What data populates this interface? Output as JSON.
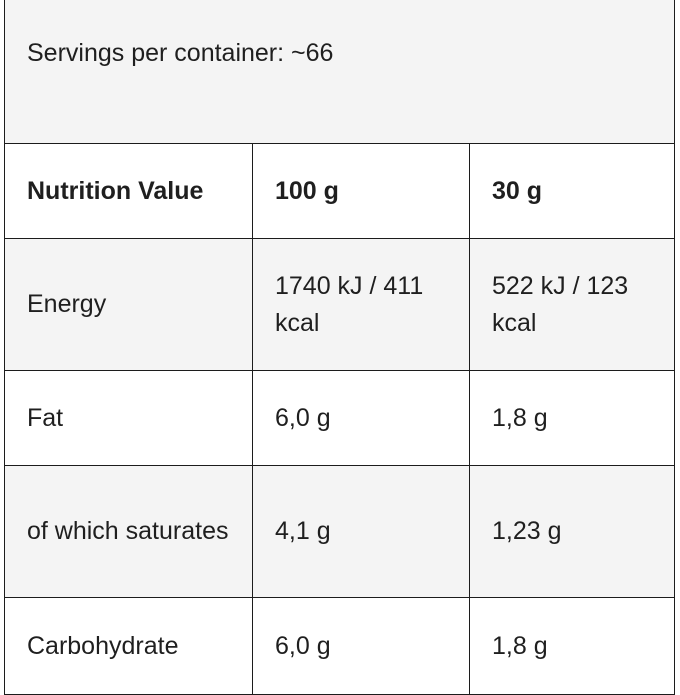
{
  "servings": {
    "text": "Servings per container: ~66"
  },
  "table": {
    "headers": [
      "Nutrition Value",
      "100 g",
      "30 g"
    ],
    "rows": [
      {
        "label": "Energy",
        "per_100g": "1740 kJ / 411 kcal",
        "per_30g": "522 kJ / 123 kcal"
      },
      {
        "label": "Fat",
        "per_100g": "6,0 g",
        "per_30g": "1,8 g"
      },
      {
        "label": "of which saturates",
        "per_100g": "4,1 g",
        "per_30g": "1,23 g"
      },
      {
        "label": "Carbohydrate",
        "per_100g": "6,0 g",
        "per_30g": "1,8 g"
      }
    ]
  },
  "colors": {
    "shaded_row": "#f4f4f4",
    "border": "#1c1c1c",
    "text": "#1f1f1f"
  }
}
